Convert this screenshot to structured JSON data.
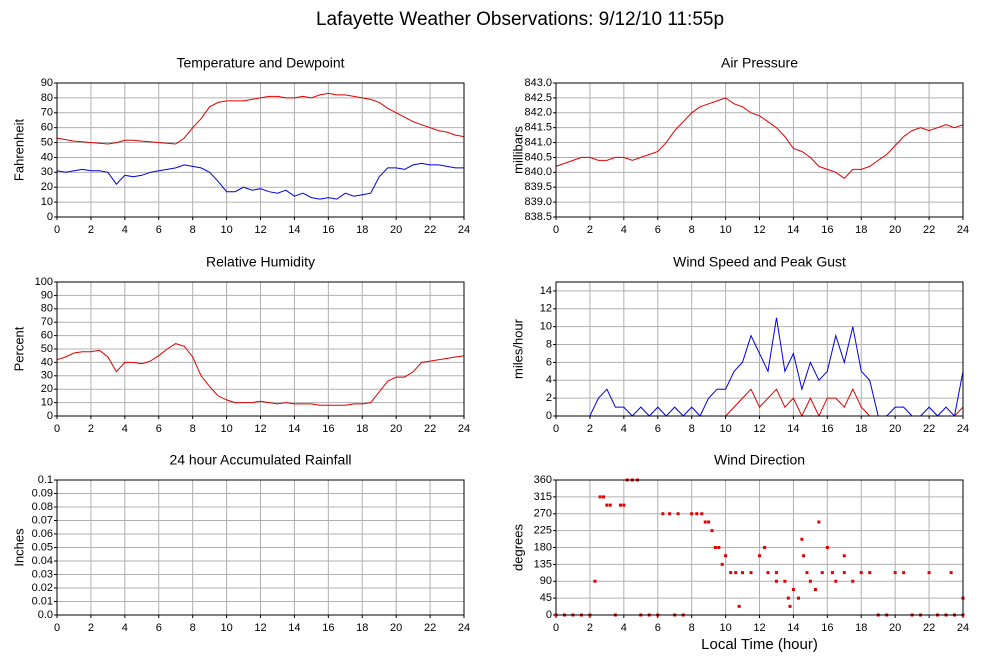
{
  "title": "Lafayette Weather Observations: 9/12/10 11:55p",
  "chart_data": [
    {
      "type": "line",
      "title": "Temperature and Dewpoint",
      "ylabel": "Fahrenheit",
      "x": [
        0,
        0.5,
        1,
        1.5,
        2,
        2.5,
        3,
        3.5,
        4,
        4.5,
        5,
        5.5,
        6,
        6.5,
        7,
        7.5,
        8,
        8.5,
        9,
        9.5,
        10,
        10.5,
        11,
        11.5,
        12,
        12.5,
        13,
        13.5,
        14,
        14.5,
        15,
        15.5,
        16,
        16.5,
        17,
        17.5,
        18,
        18.5,
        19,
        19.5,
        20,
        20.5,
        21,
        21.5,
        22,
        22.5,
        23,
        23.5,
        24
      ],
      "series": [
        {
          "color": "#e00000",
          "values": [
            53,
            52,
            51,
            50.5,
            50,
            49.5,
            49,
            50,
            51.5,
            51.5,
            51,
            50.5,
            50,
            49.5,
            49,
            53,
            60,
            66,
            74,
            77,
            78,
            78,
            78,
            79,
            80,
            81,
            81,
            80,
            80,
            81,
            80,
            82,
            83,
            82,
            82,
            81,
            80,
            79,
            77,
            73,
            70,
            67,
            64,
            62,
            60,
            58,
            57,
            55,
            54
          ]
        },
        {
          "color": "#0000e0",
          "values": [
            31,
            30,
            31,
            32,
            31,
            31,
            30,
            22,
            28,
            27,
            28,
            30,
            31,
            32,
            33,
            35,
            34,
            33,
            30,
            24,
            17,
            17,
            20,
            18,
            19,
            17,
            16,
            18,
            14,
            16,
            13,
            12,
            13,
            12,
            16,
            14,
            15,
            16,
            27,
            33,
            33,
            32,
            35,
            36,
            35,
            35,
            34,
            33,
            33
          ]
        }
      ],
      "xlim": [
        0,
        24
      ],
      "xticks": [
        0,
        2,
        4,
        6,
        8,
        10,
        12,
        14,
        16,
        18,
        20,
        22,
        24
      ],
      "ylim": [
        0,
        90
      ],
      "yticks": [
        0,
        10,
        20,
        30,
        40,
        50,
        60,
        70,
        80,
        90
      ],
      "grid": true
    },
    {
      "type": "line",
      "title": "Air Pressure",
      "ylabel": "millibars",
      "x": [
        0,
        0.5,
        1,
        1.5,
        2,
        2.5,
        3,
        3.5,
        4,
        4.5,
        5,
        5.5,
        6,
        6.5,
        7,
        7.5,
        8,
        8.5,
        9,
        9.5,
        10,
        10.5,
        11,
        11.5,
        12,
        12.5,
        13,
        13.5,
        14,
        14.5,
        15,
        15.5,
        16,
        16.5,
        17,
        17.5,
        18,
        18.5,
        19,
        19.5,
        20,
        20.5,
        21,
        21.5,
        22,
        22.5,
        23,
        23.5,
        24
      ],
      "series": [
        {
          "color": "#e00000",
          "values": [
            840.2,
            840.3,
            840.4,
            840.5,
            840.5,
            840.4,
            840.4,
            840.5,
            840.5,
            840.4,
            840.5,
            840.6,
            840.7,
            841.0,
            841.4,
            841.7,
            842.0,
            842.2,
            842.3,
            842.4,
            842.5,
            842.3,
            842.2,
            842.0,
            841.9,
            841.7,
            841.5,
            841.2,
            840.8,
            840.7,
            840.5,
            840.2,
            840.1,
            840.0,
            839.8,
            840.1,
            840.1,
            840.2,
            840.4,
            840.6,
            840.9,
            841.2,
            841.4,
            841.5,
            841.4,
            841.5,
            841.6,
            841.5,
            841.6
          ]
        }
      ],
      "xlim": [
        0,
        24
      ],
      "xticks": [
        0,
        2,
        4,
        6,
        8,
        10,
        12,
        14,
        16,
        18,
        20,
        22,
        24
      ],
      "ylim": [
        838.5,
        843.0
      ],
      "yticks": [
        838.5,
        {
          "value": 839,
          "label": "839.0"
        },
        839.5,
        {
          "value": 840,
          "label": "840.0"
        },
        840.5,
        {
          "value": 841,
          "label": "841.0"
        },
        841.5,
        {
          "value": 842,
          "label": "842.0"
        },
        842.5,
        {
          "value": 843,
          "label": "843.0"
        }
      ],
      "grid": true
    },
    {
      "type": "line",
      "title": "Relative Humidity",
      "ylabel": "Percent",
      "x": [
        0,
        0.5,
        1,
        1.5,
        2,
        2.5,
        3,
        3.5,
        4,
        4.5,
        5,
        5.5,
        6,
        6.5,
        7,
        7.5,
        8,
        8.5,
        9,
        9.5,
        10,
        10.5,
        11,
        11.5,
        12,
        12.5,
        13,
        13.5,
        14,
        14.5,
        15,
        15.5,
        16,
        16.5,
        17,
        17.5,
        18,
        18.5,
        19,
        19.5,
        20,
        20.5,
        21,
        21.5,
        22,
        22.5,
        23,
        23.5,
        24
      ],
      "series": [
        {
          "color": "#e00000",
          "values": [
            42,
            44,
            47,
            48,
            48,
            49,
            44,
            33,
            40,
            40,
            39,
            41,
            45,
            50,
            54,
            52,
            44,
            30,
            22,
            15,
            12,
            10,
            10,
            10,
            11,
            10,
            9,
            10,
            9,
            9,
            9,
            8,
            8,
            8,
            8,
            9,
            9,
            10,
            18,
            26,
            29,
            29,
            33,
            40,
            41,
            42,
            43,
            44,
            45
          ]
        }
      ],
      "xlim": [
        0,
        24
      ],
      "xticks": [
        0,
        2,
        4,
        6,
        8,
        10,
        12,
        14,
        16,
        18,
        20,
        22,
        24
      ],
      "ylim": [
        0,
        100
      ],
      "yticks": [
        0,
        10,
        20,
        30,
        40,
        50,
        60,
        70,
        80,
        90,
        100
      ],
      "grid": true
    },
    {
      "type": "line",
      "title": "Wind Speed and Peak Gust",
      "ylabel": "miles/hour",
      "x": [
        0,
        0.5,
        1,
        1.5,
        2,
        2.5,
        3,
        3.5,
        4,
        4.5,
        5,
        5.5,
        6,
        6.5,
        7,
        7.5,
        8,
        8.5,
        9,
        9.5,
        10,
        10.5,
        11,
        11.5,
        12,
        12.5,
        13,
        13.5,
        14,
        14.5,
        15,
        15.5,
        16,
        16.5,
        17,
        17.5,
        18,
        18.5,
        19,
        19.5,
        20,
        20.5,
        21,
        21.5,
        22,
        22.5,
        23,
        23.5,
        24
      ],
      "series": [
        {
          "color": "#0000e0",
          "values": [
            0,
            0,
            0,
            0,
            0,
            2,
            3,
            1,
            1,
            0,
            1,
            0,
            1,
            0,
            1,
            0,
            1,
            0,
            2,
            3,
            3,
            5,
            6,
            9,
            7,
            5,
            11,
            5,
            7,
            3,
            6,
            4,
            5,
            9,
            6,
            10,
            5,
            4,
            0,
            0,
            1,
            1,
            0,
            0,
            1,
            0,
            1,
            0,
            5
          ]
        },
        {
          "color": "#e00000",
          "values": [
            0,
            0,
            0,
            0,
            0,
            0,
            0,
            0,
            0,
            0,
            0,
            0,
            0,
            0,
            0,
            0,
            0,
            0,
            0,
            0,
            0,
            1,
            2,
            3,
            1,
            2,
            3,
            1,
            2,
            0,
            2,
            0,
            2,
            2,
            1,
            3,
            1,
            0,
            0,
            0,
            0,
            0,
            0,
            0,
            0,
            0,
            0,
            0,
            1
          ]
        }
      ],
      "xlim": [
        0,
        24
      ],
      "xticks": [
        0,
        2,
        4,
        6,
        8,
        10,
        12,
        14,
        16,
        18,
        20,
        22,
        24
      ],
      "ylim": [
        0,
        15
      ],
      "yticks": [
        0,
        2,
        4,
        6,
        8,
        10,
        12,
        14
      ],
      "grid": true
    },
    {
      "type": "line",
      "title": "24 hour Accumulated Rainfall",
      "ylabel": "Inches",
      "x": [
        0,
        24
      ],
      "series": [
        {
          "color": "#e00000",
          "values": [
            0,
            0
          ]
        }
      ],
      "xlim": [
        0,
        24
      ],
      "xticks": [
        0,
        2,
        4,
        6,
        8,
        10,
        12,
        14,
        16,
        18,
        20,
        22,
        24
      ],
      "ylim": [
        0,
        0.1
      ],
      "yticks": [
        {
          "value": 0,
          "label": "0.0"
        },
        0.01,
        0.02,
        0.03,
        0.04,
        0.05,
        0.06,
        0.07,
        0.08,
        0.09,
        0.1
      ],
      "grid": true
    },
    {
      "type": "scatter",
      "title": "Wind Direction",
      "ylabel": "degrees",
      "xlabel": "Local Time (hour)",
      "x": [
        0,
        0.5,
        1,
        1.5,
        2,
        2.3,
        2.6,
        2.8,
        3,
        3.2,
        3.5,
        3.8,
        4,
        4.2,
        4.5,
        4.8,
        5,
        5.5,
        6,
        6.3,
        6.7,
        7,
        7.2,
        7.5,
        8,
        8.3,
        8.6,
        8.8,
        9,
        9.2,
        9.4,
        9.6,
        9.8,
        10,
        10.3,
        10.6,
        10.8,
        11,
        11.5,
        12,
        12.3,
        12.5,
        13,
        13,
        13.5,
        13.7,
        13.8,
        14,
        14.3,
        14.5,
        14.6,
        14.8,
        15,
        15.3,
        15.5,
        15.7,
        16,
        16.3,
        16.5,
        17,
        17,
        17.5,
        18,
        18.5,
        19,
        19.5,
        20,
        20.5,
        21,
        21.5,
        22,
        22.5,
        23,
        23.3,
        23.5,
        24,
        24
      ],
      "series": [
        {
          "color": "#e00000",
          "values": [
            0,
            0,
            0,
            0,
            0,
            90,
            315,
            315,
            293,
            293,
            0,
            293,
            293,
            360,
            360,
            360,
            0,
            0,
            0,
            270,
            270,
            0,
            270,
            0,
            270,
            270,
            270,
            248,
            248,
            225,
            180,
            180,
            135,
            158,
            113,
            113,
            23,
            113,
            113,
            158,
            180,
            113,
            113,
            90,
            90,
            45,
            23,
            68,
            45,
            202,
            158,
            113,
            90,
            68,
            248,
            113,
            180,
            113,
            90,
            158,
            113,
            90,
            113,
            113,
            0,
            0,
            113,
            113,
            0,
            0,
            113,
            0,
            0,
            113,
            0,
            45,
            0
          ]
        }
      ],
      "xlim": [
        0,
        24
      ],
      "xticks": [
        0,
        2,
        4,
        6,
        8,
        10,
        12,
        14,
        16,
        18,
        20,
        22,
        24
      ],
      "ylim": [
        0,
        360
      ],
      "yticks": [
        0,
        45,
        90,
        135,
        180,
        225,
        270,
        315,
        360
      ],
      "grid": true
    }
  ]
}
